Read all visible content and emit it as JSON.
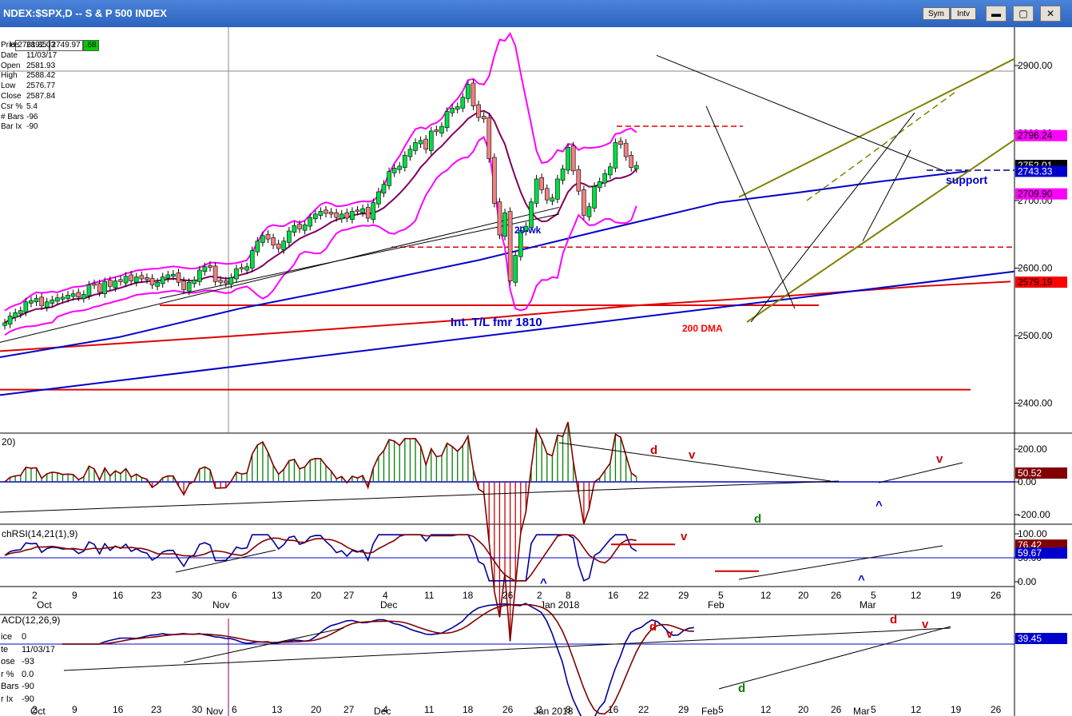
{
  "window": {
    "title": "NDEX:$SPX,D -- S & P 500 INDEX",
    "sym_label": "Sym",
    "intv_label": "Intv",
    "min_glyph": "▬",
    "max_glyph": "▢",
    "close_glyph": "✕"
  },
  "quote_bar": {
    "h_label": "H",
    "v1": "2761.85",
    "v2": "2749.97",
    "v3": ".68",
    "v3_color": "#00cc00"
  },
  "info_panel": [
    {
      "k": "Price",
      "v": "2892.03"
    },
    {
      "k": "Date",
      "v": "11/03/17"
    },
    {
      "k": "Open",
      "v": "2581.93"
    },
    {
      "k": "High",
      "v": "2588.42"
    },
    {
      "k": "Low",
      "v": "2576.77"
    },
    {
      "k": "Close",
      "v": "2587.84"
    },
    {
      "k": "Csr %",
      "v": "5.4"
    },
    {
      "k": "# Bars",
      "v": "-96"
    },
    {
      "k": "Bar Ix",
      "v": "-90"
    }
  ],
  "macd_info": [
    {
      "k": "ice",
      "v": "0"
    },
    {
      "k": "te",
      "v": "11/03/17"
    },
    {
      "k": "ose",
      "v": "-93"
    },
    {
      "k": "r %",
      "v": "0.0"
    },
    {
      "k": "Bars",
      "v": "-90"
    },
    {
      "k": "r Ix",
      "v": "-90"
    }
  ],
  "chart_data": [
    {
      "type": "candlestick",
      "title": "NDEX:$SPX,D -- S & P 500 INDEX",
      "ylim": [
        2370,
        2950
      ],
      "yticks": [
        "2900.00",
        "2800.00",
        "2700.00",
        "2600.00",
        "2500.00",
        "2400.00"
      ],
      "price_tags": [
        {
          "label": "2796.24",
          "value": 2796.24,
          "bg": "#ff00ff",
          "fg": "#000000"
        },
        {
          "label": "2752.01",
          "value": 2752.01,
          "bg": "#000000",
          "fg": "#ffffff"
        },
        {
          "label": "2743.33",
          "value": 2743.33,
          "bg": "#0000cc",
          "fg": "#ffffff"
        },
        {
          "label": "2709.90",
          "value": 2709.9,
          "bg": "#ff00ff",
          "fg": "#000000"
        },
        {
          "label": "2579.19",
          "value": 2579.19,
          "bg": "#ff0000",
          "fg": "#000000"
        }
      ],
      "annotations": [
        {
          "text": "20-wk",
          "color": "#0000cc"
        },
        {
          "text": "Int. T/L fmr 1810",
          "color": "#0000cc"
        },
        {
          "text": "200 DMA",
          "color": "#ff0000"
        },
        {
          "text": "support",
          "color": "#0000cc"
        }
      ],
      "closes": [
        2519,
        2529,
        2534,
        2537,
        2550,
        2552,
        2555,
        2544,
        2550,
        2553,
        2556,
        2557,
        2560,
        2562,
        2557,
        2561,
        2575,
        2575,
        2564,
        2580,
        2573,
        2581,
        2580,
        2588,
        2581,
        2587,
        2584,
        2583,
        2575,
        2579,
        2587,
        2590,
        2591,
        2579,
        2568,
        2579,
        2582,
        2597,
        2602,
        2601,
        2580,
        2579,
        2578,
        2586,
        2599,
        2599,
        2602,
        2626,
        2640,
        2648,
        2643,
        2634,
        2629,
        2640,
        2655,
        2663,
        2658,
        2664,
        2675,
        2680,
        2684,
        2681,
        2680,
        2675,
        2680,
        2674,
        2684,
        2684,
        2688,
        2674,
        2697,
        2713,
        2724,
        2743,
        2748,
        2751,
        2767,
        2776,
        2786,
        2789,
        2776,
        2803,
        2802,
        2810,
        2832,
        2837,
        2839,
        2853,
        2872,
        2840,
        2823,
        2821,
        2762,
        2696,
        2649,
        2682,
        2581,
        2619,
        2656,
        2662,
        2698,
        2732,
        2716,
        2701,
        2704,
        2732,
        2747,
        2779,
        2744,
        2714,
        2678,
        2691,
        2721,
        2728,
        2740,
        2750,
        2786,
        2783,
        2765,
        2749,
        2752
      ],
      "indicator_panels": [
        {
          "label": "20)",
          "yticks": [
            "200.00",
            "0.00",
            "-200.00"
          ],
          "tag": {
            "label": "50.52",
            "bg": "#800000",
            "fg": "#ffffff"
          },
          "annotations": [
            "d",
            "v",
            "d",
            "^",
            "v"
          ]
        },
        {
          "label": "chRSI(14,21(1),9)",
          "yticks": [
            "100.00",
            "50.00",
            "0.00"
          ],
          "tags": [
            {
              "label": "76.42",
              "bg": "#800000",
              "fg": "#ffffff"
            },
            {
              "label": "59.67",
              "bg": "#0000cc",
              "fg": "#ffffff"
            }
          ],
          "annotations": [
            "v",
            "^",
            "^"
          ]
        },
        {
          "label": "ACD(12,26,9)",
          "tag": {
            "label": "39.45",
            "bg": "#0000cc",
            "fg": "#ffffff"
          },
          "annotations": [
            "d",
            "v",
            "d",
            "d",
            "v"
          ]
        }
      ],
      "x_day_labels": [
        "2",
        "9",
        "16",
        "23",
        "30",
        "6",
        "13",
        "20",
        "27",
        "4",
        "11",
        "18",
        "26",
        "2",
        "8",
        "16",
        "22",
        "29",
        "5",
        "12",
        "20",
        "26",
        "5",
        "12",
        "19",
        "26"
      ],
      "x_month_labels": [
        "Oct",
        "Nov",
        "Dec",
        "Jan 2018",
        "Feb",
        "Mar"
      ]
    }
  ]
}
